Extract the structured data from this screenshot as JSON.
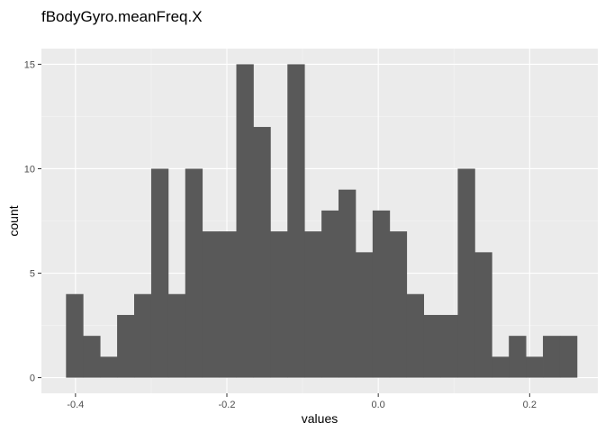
{
  "chart_data": {
    "type": "bar",
    "subtype": "histogram",
    "title": "fBodyGyro.meanFreq.X",
    "xlabel": "values",
    "ylabel": "count",
    "bin_start": -0.4125,
    "bin_width": 0.0225,
    "values": [
      4,
      2,
      1,
      3,
      4,
      10,
      4,
      10,
      7,
      7,
      15,
      12,
      7,
      15,
      7,
      8,
      9,
      6,
      8,
      7,
      4,
      3,
      3,
      10,
      6,
      1,
      2,
      1,
      2,
      2
    ],
    "xlim": [
      -0.445,
      0.29
    ],
    "ylim": [
      -0.75,
      15.75
    ],
    "x_ticks": [
      -0.4,
      -0.2,
      0.0,
      0.2
    ],
    "x_tick_labels": [
      "-0.4",
      "-0.2",
      "0.0",
      "0.2"
    ],
    "y_ticks": [
      0,
      5,
      10,
      15
    ],
    "y_tick_labels": [
      "0",
      "5",
      "10",
      "15"
    ],
    "grid": true,
    "colors": {
      "bar": "#595959",
      "panel": "#ebebeb",
      "grid_major": "#ffffff",
      "grid_minor": "#f5f5f5"
    }
  }
}
